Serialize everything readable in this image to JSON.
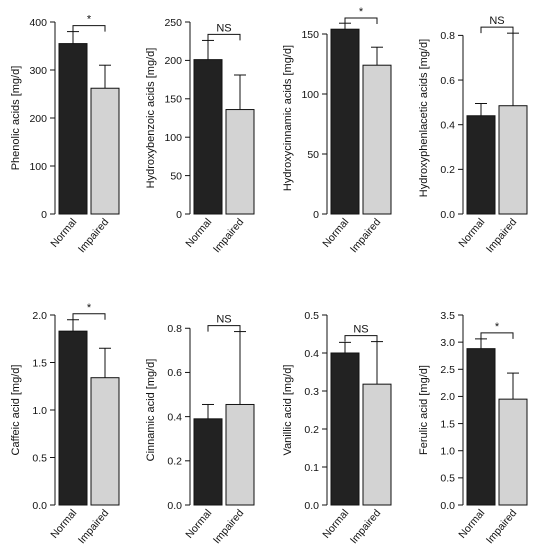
{
  "figure": {
    "colors": {
      "normal": "#222222",
      "impaired": "#d3d3d3",
      "stroke": "#111111"
    }
  },
  "chart_data": [
    {
      "type": "bar",
      "categories": [
        "Normal",
        "Impaired"
      ],
      "values": [
        355,
        262
      ],
      "errors": [
        25,
        48
      ],
      "ylabel": "Phenolic acids [mg/d]",
      "ylim": [
        0,
        400
      ],
      "yticks": [
        0,
        100,
        200,
        300,
        400
      ],
      "yticklabels": [
        "0",
        "100",
        "200",
        "300",
        "400"
      ],
      "significance": "*",
      "grid": false
    },
    {
      "type": "bar",
      "categories": [
        "Normal",
        "Impaired"
      ],
      "values": [
        201,
        136
      ],
      "errors": [
        25,
        45
      ],
      "ylabel": "Hydroxybenzoic acids [mg/d]",
      "ylim": [
        0,
        250
      ],
      "yticks": [
        0,
        50,
        100,
        150,
        200,
        250
      ],
      "yticklabels": [
        "0",
        "50",
        "100",
        "150",
        "200",
        "250"
      ],
      "significance": "NS",
      "grid": false
    },
    {
      "type": "bar",
      "categories": [
        "Normal",
        "Impaired"
      ],
      "values": [
        154,
        124
      ],
      "errors": [
        5,
        15
      ],
      "ylabel": "Hydroxycinnamic acids [mg/d]",
      "ylim": [
        0,
        160
      ],
      "yticks": [
        0,
        50,
        100,
        150
      ],
      "yticklabels": [
        "0",
        "50",
        "100",
        "150"
      ],
      "significance": "*",
      "grid": false
    },
    {
      "type": "bar",
      "categories": [
        "Normal",
        "Impaired"
      ],
      "values": [
        0.44,
        0.485
      ],
      "errors": [
        0.055,
        0.325
      ],
      "ylabel": "Hydroxyphenlacetic acids [mg/d]",
      "ylim": [
        0,
        0.86
      ],
      "yticks": [
        0,
        0.2,
        0.4,
        0.6,
        0.8
      ],
      "yticklabels": [
        "0.0",
        "0.2",
        "0.4",
        "0.6",
        "0.8"
      ],
      "significance": "NS",
      "grid": false
    },
    {
      "type": "bar",
      "categories": [
        "Normal",
        "Impaired"
      ],
      "values": [
        1.83,
        1.34
      ],
      "errors": [
        0.12,
        0.31
      ],
      "ylabel": "Caffeic acid [mg/d]",
      "ylim": [
        0,
        2.0
      ],
      "yticks": [
        0,
        0.5,
        1.0,
        1.5,
        2.0
      ],
      "yticklabels": [
        "0.0",
        "0.5",
        "1.0",
        "1.5",
        "2.0"
      ],
      "significance": "*",
      "grid": false
    },
    {
      "type": "bar",
      "categories": [
        "Normal",
        "Impaired"
      ],
      "values": [
        0.39,
        0.455
      ],
      "errors": [
        0.065,
        0.33
      ],
      "ylabel": "Cinnamic acid [mg/d]",
      "ylim": [
        0,
        0.86
      ],
      "yticks": [
        0,
        0.2,
        0.4,
        0.6,
        0.8
      ],
      "yticklabels": [
        "0.0",
        "0.2",
        "0.4",
        "0.6",
        "0.8"
      ],
      "significance": "NS",
      "grid": false
    },
    {
      "type": "bar",
      "categories": [
        "Normal",
        "Impaired"
      ],
      "values": [
        0.4,
        0.318
      ],
      "errors": [
        0.028,
        0.112
      ],
      "ylabel": "Vanillic acid [mg/d]",
      "ylim": [
        0,
        0.5
      ],
      "yticks": [
        0,
        0.1,
        0.2,
        0.3,
        0.4,
        0.5
      ],
      "yticklabels": [
        "0.0",
        "0.1",
        "0.2",
        "0.3",
        "0.4",
        "0.5"
      ],
      "significance": "NS",
      "grid": false
    },
    {
      "type": "bar",
      "categories": [
        "Normal",
        "Impaired"
      ],
      "values": [
        2.88,
        1.95
      ],
      "errors": [
        0.18,
        0.48
      ],
      "ylabel": "Ferulic acid [mg/d]",
      "ylim": [
        0,
        3.5
      ],
      "yticks": [
        0,
        0.5,
        1.0,
        1.5,
        2.0,
        2.5,
        3.0,
        3.5
      ],
      "yticklabels": [
        "0.0",
        "0.5",
        "1.0",
        "1.5",
        "2.0",
        "2.5",
        "3.0",
        "3.5"
      ],
      "significance": "*",
      "grid": false
    }
  ]
}
